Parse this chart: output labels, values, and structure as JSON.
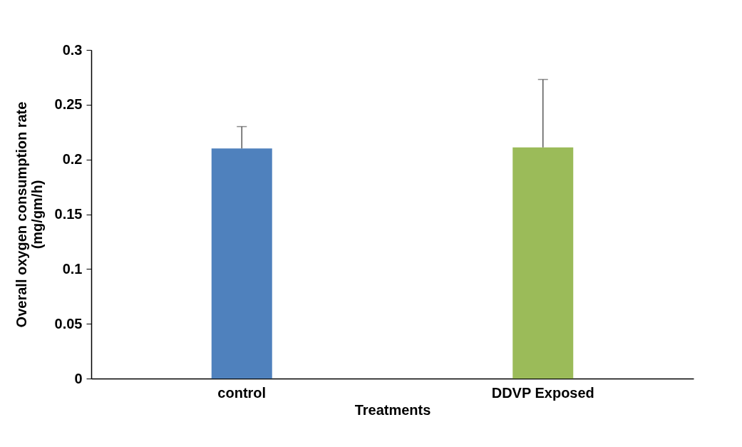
{
  "chart_data": {
    "type": "bar",
    "xlabel": "Treatments",
    "ylabel": "Overall oxygen consumption rate (mg/gm/h)",
    "categories": [
      "control",
      "DDVP Exposed"
    ],
    "values": [
      0.21,
      0.211
    ],
    "colors": [
      "#4f81bd",
      "#9bbb59"
    ],
    "errors": [
      [
        0.21,
        0.23
      ],
      [
        0.211,
        0.273
      ]
    ],
    "ylim": [
      0,
      0.3
    ],
    "yticks": [
      0,
      0.05,
      0.1,
      0.15,
      0.2,
      0.25,
      0.3
    ],
    "grid": false
  }
}
